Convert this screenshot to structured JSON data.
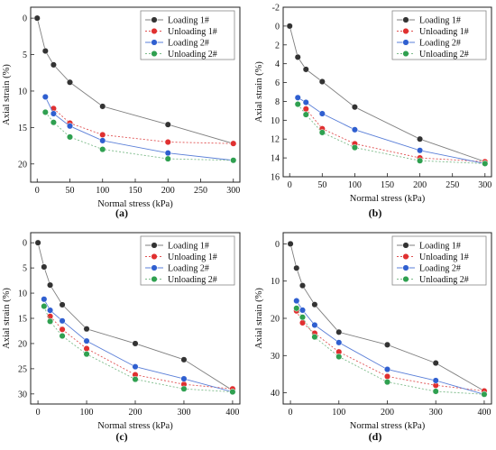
{
  "series_styles": [
    {
      "color": "#7f7f7f",
      "fill": "#333333",
      "dash": ""
    },
    {
      "color": "#e05252",
      "fill": "#e03030",
      "dash": "2,2"
    },
    {
      "color": "#5a7fd8",
      "fill": "#2f5fd0",
      "dash": ""
    },
    {
      "color": "#7dbb8a",
      "fill": "#2fa050",
      "dash": "2,2"
    }
  ],
  "chart_data": [
    {
      "type": "line",
      "panel_label": "(a)",
      "xlabel": "Normal stress (kPa)",
      "ylabel": "Axial strain (%)",
      "xlim": [
        -10,
        310
      ],
      "ylim": [
        -1.5,
        22.5
      ],
      "y_inverted": true,
      "grid": false,
      "legend": "top-right",
      "x_ticks": [
        0,
        50,
        100,
        150,
        200,
        250,
        300
      ],
      "y_ticks": [
        0,
        5,
        10,
        15,
        20
      ],
      "series": [
        {
          "name": "Loading 1#",
          "x": [
            0,
            12.5,
            25,
            50,
            100,
            200,
            300
          ],
          "y": [
            0,
            4.5,
            6.4,
            8.8,
            12.1,
            14.6,
            17.2
          ]
        },
        {
          "name": "Unloading 1#",
          "x": [
            25,
            50,
            100,
            200,
            300
          ],
          "y": [
            12.4,
            14.4,
            16.0,
            17.0,
            17.2
          ]
        },
        {
          "name": "Loading 2#",
          "x": [
            12.5,
            25,
            50,
            100,
            200,
            300
          ],
          "y": [
            10.8,
            13.1,
            14.8,
            16.8,
            18.5,
            19.5
          ]
        },
        {
          "name": "Unloading 2#",
          "x": [
            12.5,
            25,
            50,
            100,
            200,
            300
          ],
          "y": [
            12.9,
            14.3,
            16.3,
            18.0,
            19.3,
            19.5
          ]
        }
      ]
    },
    {
      "type": "line",
      "panel_label": "(b)",
      "xlabel": "Normal stress (kPa)",
      "ylabel": "Axial strain (%)",
      "xlim": [
        -10,
        310
      ],
      "ylim": [
        -2,
        16
      ],
      "y_inverted": true,
      "grid": false,
      "legend": "top-right",
      "x_ticks": [
        0,
        50,
        100,
        150,
        200,
        250,
        300
      ],
      "y_ticks": [
        -2,
        0,
        2,
        4,
        6,
        8,
        10,
        12,
        14,
        16
      ],
      "series": [
        {
          "name": "Loading 1#",
          "x": [
            0,
            12.5,
            25,
            50,
            100,
            200,
            300
          ],
          "y": [
            0,
            3.3,
            4.6,
            5.9,
            8.6,
            12.0,
            14.4
          ]
        },
        {
          "name": "Unloading 1#",
          "x": [
            25,
            50,
            100,
            200,
            300
          ],
          "y": [
            8.8,
            10.9,
            12.5,
            14.0,
            14.4
          ]
        },
        {
          "name": "Loading 2#",
          "x": [
            12.5,
            25,
            50,
            100,
            200,
            300
          ],
          "y": [
            7.6,
            8.1,
            9.3,
            11.0,
            13.2,
            14.6
          ]
        },
        {
          "name": "Unloading 2#",
          "x": [
            12.5,
            25,
            50,
            100,
            200,
            300
          ],
          "y": [
            8.3,
            9.4,
            11.3,
            12.9,
            14.3,
            14.6
          ]
        }
      ]
    },
    {
      "type": "line",
      "panel_label": "(c)",
      "xlabel": "Normal stress (kPa)",
      "ylabel": "Axial strain (%)",
      "xlim": [
        -15,
        415
      ],
      "ylim": [
        -2,
        32
      ],
      "y_inverted": true,
      "grid": false,
      "legend": "top-right",
      "x_ticks": [
        0,
        100,
        200,
        300,
        400
      ],
      "y_ticks": [
        0,
        5,
        10,
        15,
        20,
        25,
        30
      ],
      "series": [
        {
          "name": "Loading 1#",
          "x": [
            0,
            12.5,
            25,
            50,
            100,
            200,
            300,
            400
          ],
          "y": [
            0,
            4.8,
            8.4,
            12.3,
            17.1,
            20.0,
            23.2,
            29.3
          ]
        },
        {
          "name": "Unloading 1#",
          "x": [
            25,
            50,
            100,
            200,
            300,
            400
          ],
          "y": [
            14.6,
            17.2,
            21.0,
            26.2,
            28.1,
            29.0
          ]
        },
        {
          "name": "Loading 2#",
          "x": [
            12.5,
            25,
            50,
            100,
            200,
            300,
            400
          ],
          "y": [
            11.2,
            13.4,
            15.5,
            19.5,
            24.6,
            27.0,
            29.6
          ]
        },
        {
          "name": "Unloading 2#",
          "x": [
            12.5,
            25,
            50,
            100,
            200,
            300,
            400
          ],
          "y": [
            12.6,
            15.6,
            18.5,
            22.1,
            27.1,
            29.0,
            29.6
          ]
        }
      ]
    },
    {
      "type": "line",
      "panel_label": "(d)",
      "xlabel": "Normal stress (kPa)",
      "ylabel": "Axial strain (%)",
      "xlim": [
        -15,
        415
      ],
      "ylim": [
        -3,
        43
      ],
      "y_inverted": true,
      "grid": false,
      "legend": "top-right",
      "x_ticks": [
        0,
        100,
        200,
        300,
        400
      ],
      "y_ticks": [
        0,
        10,
        20,
        30,
        40
      ],
      "series": [
        {
          "name": "Loading 1#",
          "x": [
            0,
            12.5,
            25,
            50,
            100,
            200,
            300,
            400
          ],
          "y": [
            0,
            6.5,
            11.2,
            16.3,
            23.7,
            27.1,
            32.0,
            39.5
          ]
        },
        {
          "name": "Unloading 1#",
          "x": [
            12.5,
            25,
            50,
            100,
            200,
            300,
            400
          ],
          "y": [
            18.0,
            21.2,
            24.0,
            29.0,
            35.6,
            38.0,
            39.5
          ]
        },
        {
          "name": "Loading 2#",
          "x": [
            12.5,
            25,
            50,
            100,
            200,
            300,
            400
          ],
          "y": [
            15.3,
            17.8,
            21.8,
            26.5,
            33.7,
            36.7,
            40.4
          ]
        },
        {
          "name": "Unloading 2#",
          "x": [
            12.5,
            25,
            50,
            100,
            200,
            300,
            400
          ],
          "y": [
            17.3,
            19.7,
            25.0,
            30.3,
            37.1,
            39.6,
            40.4
          ]
        }
      ]
    }
  ]
}
